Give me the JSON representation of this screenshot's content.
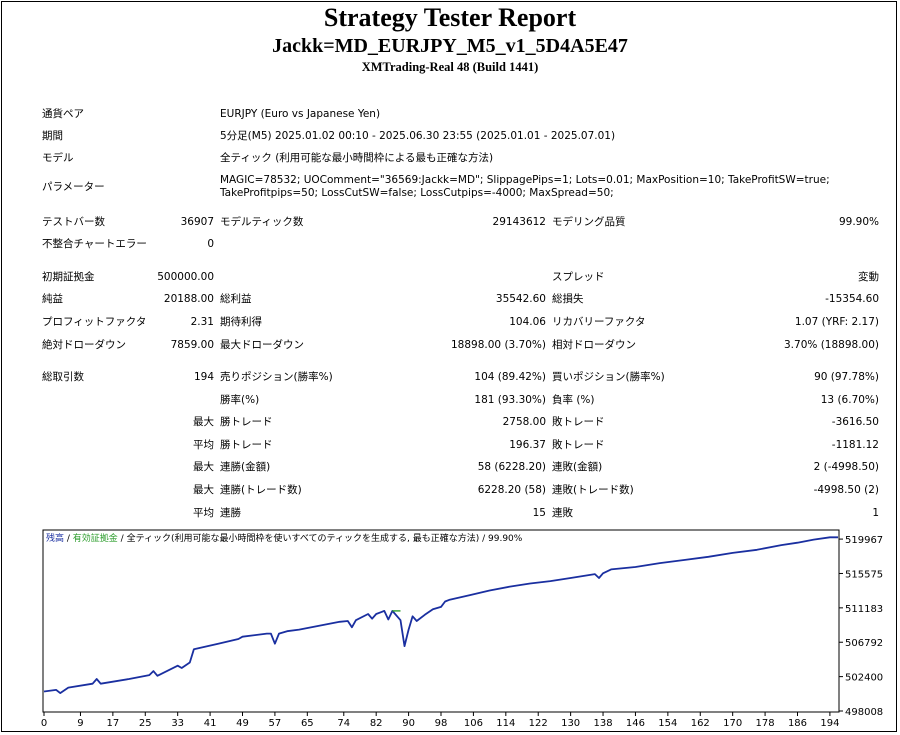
{
  "header": {
    "title": "Strategy Tester Report",
    "subtitle": "Jackk=MD_EURJPY_M5_v1_5D4A5E47",
    "server": "XMTrading-Real 48 (Build 1441)"
  },
  "info": {
    "symbol_label": "通貨ペア",
    "symbol_value": "EURJPY (Euro vs Japanese Yen)",
    "period_label": "期間",
    "period_value": "5分足(M5) 2025.01.02 00:10 - 2025.06.30 23:55 (2025.01.01 - 2025.07.01)",
    "model_label": "モデル",
    "model_value": "全ティック (利用可能な最小時間枠による最も正確な方法)",
    "params_label": "パラメーター",
    "params_line1": "MAGIC=78532; UOComment=\"36569:Jackk=MD\"; SlippagePips=1; Lots=0.01; MaxPosition=10; TakeProfitSW=true;",
    "params_line2": "TakeProfitpips=50; LossCutSW=false; LossCutpips=-4000; MaxSpread=50;"
  },
  "test": {
    "bars_label": "テストバー数",
    "bars_value": "36907",
    "ticks_label": "モデルティック数",
    "ticks_value": "29143612",
    "quality_label": "モデリング品質",
    "quality_value": "99.90%",
    "mismatch_label": "不整合チャートエラー",
    "mismatch_value": "0"
  },
  "results": {
    "deposit_label": "初期証拠金",
    "deposit_value": "500000.00",
    "spread_label": "スプレッド",
    "spread_value": "変動",
    "net_label": "純益",
    "net_value": "20188.00",
    "gross_profit_label": "総利益",
    "gross_profit_value": "35542.60",
    "gross_loss_label": "総損失",
    "gross_loss_value": "-15354.60",
    "pf_label": "プロフィットファクタ",
    "pf_value": "2.31",
    "expected_label": "期待利得",
    "expected_value": "104.06",
    "recovery_label": "リカバリーファクタ",
    "recovery_value": "1.07 (YRF: 2.17)",
    "abs_dd_label": "絶対ドローダウン",
    "abs_dd_value": "7859.00",
    "max_dd_label": "最大ドローダウン",
    "max_dd_value": "18898.00 (3.70%)",
    "rel_dd_label": "相対ドローダウン",
    "rel_dd_value": "3.70% (18898.00)",
    "total_trades_label": "総取引数",
    "total_trades_value": "194",
    "short_label": "売りポジション(勝率%)",
    "short_value": "104 (89.42%)",
    "long_label": "買いポジション(勝率%)",
    "long_value": "90 (97.78%)",
    "win_label": "勝率(%)",
    "win_value": "181 (93.30%)",
    "loss_label": "負率 (%)",
    "loss_value": "13 (6.70%)",
    "max_label": "最大",
    "avg_label": "平均",
    "largest_win_label": "勝トレード",
    "largest_win_value": "2758.00",
    "largest_loss_label": "敗トレード",
    "largest_loss_value": "-3616.50",
    "avg_win_label": "勝トレード",
    "avg_win_value": "196.37",
    "avg_loss_label": "敗トレード",
    "avg_loss_value": "-1181.12",
    "max_consec_wins_label": "連勝(金額)",
    "max_consec_wins_value": "58 (6228.20)",
    "max_consec_losses_label": "連敗(金額)",
    "max_consec_losses_value": "2 (-4998.50)",
    "max_consec_profit_label": "連勝(トレード数)",
    "max_consec_profit_value": "6228.20 (58)",
    "max_consec_loss_label": "連敗(トレード数)",
    "max_consec_loss_value": "-4998.50 (2)",
    "avg_consec_wins_label": "連勝",
    "avg_consec_wins_value": "15",
    "avg_consec_losses_label": "連敗",
    "avg_consec_losses_value": "1"
  },
  "chart_data": {
    "type": "line",
    "legend": {
      "balance": "残高",
      "sep1": " / ",
      "equity": "有効証拠金",
      "sep2": " / ",
      "model": "全ティック(利用可能な最小時間枠を使いすべてのティックを生成する, 最も正確な方法)",
      "sep3": " / ",
      "quality": "99.90%"
    },
    "x_ticks": [
      "0",
      "9",
      "17",
      "25",
      "33",
      "41",
      "49",
      "57",
      "65",
      "74",
      "82",
      "90",
      "98",
      "106",
      "114",
      "122",
      "130",
      "138",
      "146",
      "154",
      "162",
      "170",
      "178",
      "186",
      "194"
    ],
    "y_ticks": [
      "519967",
      "515575",
      "511183",
      "506792",
      "502400",
      "498008"
    ],
    "ylim": [
      498008,
      521000
    ],
    "xlim": [
      0,
      196
    ],
    "colors": {
      "balance": "#1a2fa0",
      "equity": "#2e9e2e"
    },
    "series": [
      {
        "name": "残高",
        "x": [
          0,
          3,
          4,
          6,
          12,
          13,
          14,
          21,
          26,
          27,
          28,
          33,
          34,
          36,
          37,
          43,
          48,
          49,
          55,
          56,
          57,
          58,
          60,
          63,
          73,
          75,
          76,
          77,
          80,
          81,
          82,
          84,
          85,
          86,
          88,
          89,
          90,
          91,
          92,
          94,
          96,
          98,
          99,
          100,
          105,
          110,
          115,
          120,
          125,
          130,
          136,
          137,
          138,
          140,
          146,
          152,
          158,
          164,
          170,
          176,
          182,
          186,
          190,
          194,
          196
        ],
        "y": [
          500500,
          500700,
          500300,
          501000,
          501500,
          502100,
          501500,
          502100,
          502600,
          503100,
          502500,
          503800,
          503500,
          504200,
          505900,
          506600,
          507200,
          507500,
          507900,
          507900,
          506600,
          507900,
          508200,
          508400,
          509400,
          509500,
          508700,
          509600,
          510400,
          509800,
          510400,
          510800,
          509700,
          510800,
          509600,
          506300,
          508400,
          510100,
          509500,
          510300,
          511000,
          511300,
          512000,
          512200,
          512800,
          513400,
          513900,
          514300,
          514600,
          515000,
          515500,
          515000,
          515600,
          516100,
          516400,
          516900,
          517300,
          517700,
          518200,
          518600,
          519200,
          519500,
          519900,
          520200,
          520200
        ]
      },
      {
        "name": "有効証拠金",
        "x": [
          86,
          87,
          88
        ],
        "y": [
          510800,
          510800,
          510800
        ]
      }
    ]
  }
}
